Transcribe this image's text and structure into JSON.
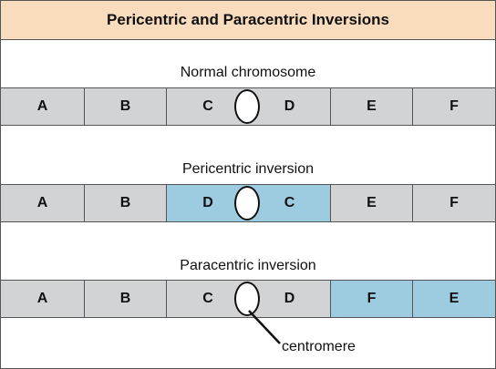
{
  "title": "Pericentric and Paracentric Inversions",
  "colors": {
    "header_bg": "#f9dcbd",
    "normal_seg": "#d2d3d5",
    "inverted_seg": "#9dcbe0"
  },
  "rows": [
    {
      "label": "Normal chromosome",
      "segments": [
        {
          "letter": "A",
          "inverted": false
        },
        {
          "letter": "B",
          "inverted": false
        },
        {
          "letter": "C",
          "inverted": false
        },
        {
          "letter": "D",
          "inverted": false
        },
        {
          "letter": "E",
          "inverted": false
        },
        {
          "letter": "F",
          "inverted": false
        }
      ]
    },
    {
      "label": "Pericentric inversion",
      "segments": [
        {
          "letter": "A",
          "inverted": false
        },
        {
          "letter": "B",
          "inverted": false
        },
        {
          "letter": "D",
          "inverted": true
        },
        {
          "letter": "C",
          "inverted": true
        },
        {
          "letter": "E",
          "inverted": false
        },
        {
          "letter": "F",
          "inverted": false
        }
      ]
    },
    {
      "label": "Paracentric inversion",
      "segments": [
        {
          "letter": "A",
          "inverted": false
        },
        {
          "letter": "B",
          "inverted": false
        },
        {
          "letter": "C",
          "inverted": false
        },
        {
          "letter": "D",
          "inverted": false
        },
        {
          "letter": "F",
          "inverted": true
        },
        {
          "letter": "E",
          "inverted": true
        }
      ]
    }
  ],
  "callout": "centromere"
}
